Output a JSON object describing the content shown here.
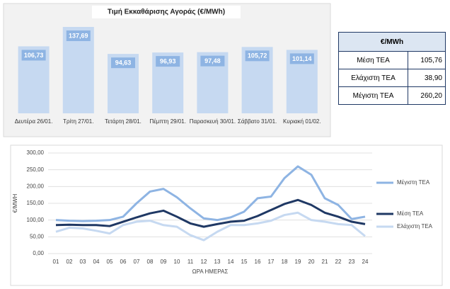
{
  "chart_data": [
    {
      "type": "bar",
      "title": "Τιμή Εκκαθάρισης Αγοράς (€/MWh)",
      "categories": [
        "Δευτέρα 26/01.",
        "Τρίτη 27/01.",
        "Τετάρτη 28/01.",
        "Πέμπτη 29/01.",
        "Παρασκευή 30/01.",
        "Σάββατο 31/01.",
        "Κυριακή 01/02."
      ],
      "values": [
        106.73,
        137.69,
        94.63,
        96.93,
        97.48,
        105.72,
        101.14
      ],
      "value_labels": [
        "106,73",
        "137,69",
        "94,63",
        "96,93",
        "97,48",
        "105,72",
        "101,14"
      ],
      "color": "#c6d9f1"
    },
    {
      "type": "line",
      "xlabel": "ΩΡΑ ΗΜΕΡΑΣ",
      "ylabel": "€/MWH",
      "categories": [
        "01",
        "02",
        "03",
        "04",
        "05",
        "06",
        "07",
        "08",
        "09",
        "10",
        "11",
        "12",
        "13",
        "14",
        "15",
        "16",
        "17",
        "18",
        "19",
        "20",
        "21",
        "22",
        "23",
        "24"
      ],
      "ylim": [
        0,
        300
      ],
      "yticks": [
        {
          "value": 0,
          "label": "0,00"
        },
        {
          "value": 50,
          "label": "50,00"
        },
        {
          "value": 100,
          "label": "100,00"
        },
        {
          "value": 150,
          "label": "150,00"
        },
        {
          "value": 200,
          "label": "200,00"
        },
        {
          "value": 250,
          "label": "250,00"
        },
        {
          "value": 300,
          "label": "300,00"
        }
      ],
      "grid": true,
      "series": [
        {
          "name": "Μέγιστη ΤΕΑ",
          "color": "#8eb4e3",
          "values": [
            100,
            98,
            97,
            98,
            100,
            110,
            150,
            185,
            193,
            168,
            135,
            105,
            100,
            108,
            125,
            165,
            170,
            225,
            260,
            235,
            165,
            145,
            103,
            110
          ]
        },
        {
          "name": "Μέση ΤΕΑ",
          "color": "#1f3864",
          "values": [
            85,
            86,
            85,
            85,
            82,
            95,
            108,
            120,
            128,
            110,
            90,
            80,
            88,
            95,
            98,
            112,
            130,
            148,
            160,
            145,
            122,
            110,
            95,
            88
          ]
        },
        {
          "name": "Ελάχιστη ΤΕΑ",
          "color": "#c6d9f1",
          "values": [
            65,
            77,
            75,
            68,
            60,
            85,
            95,
            98,
            85,
            80,
            55,
            40,
            65,
            85,
            85,
            90,
            98,
            115,
            122,
            100,
            95,
            88,
            85,
            52
          ]
        }
      ]
    }
  ],
  "table": {
    "header": "€/MWh",
    "rows": [
      [
        "Μέση ΤΕΑ",
        "105,76"
      ],
      [
        "Ελάχιστη ΤΕΑ",
        "38,90"
      ],
      [
        "Μέγιστη ΤΕΑ",
        "260,20"
      ]
    ]
  }
}
